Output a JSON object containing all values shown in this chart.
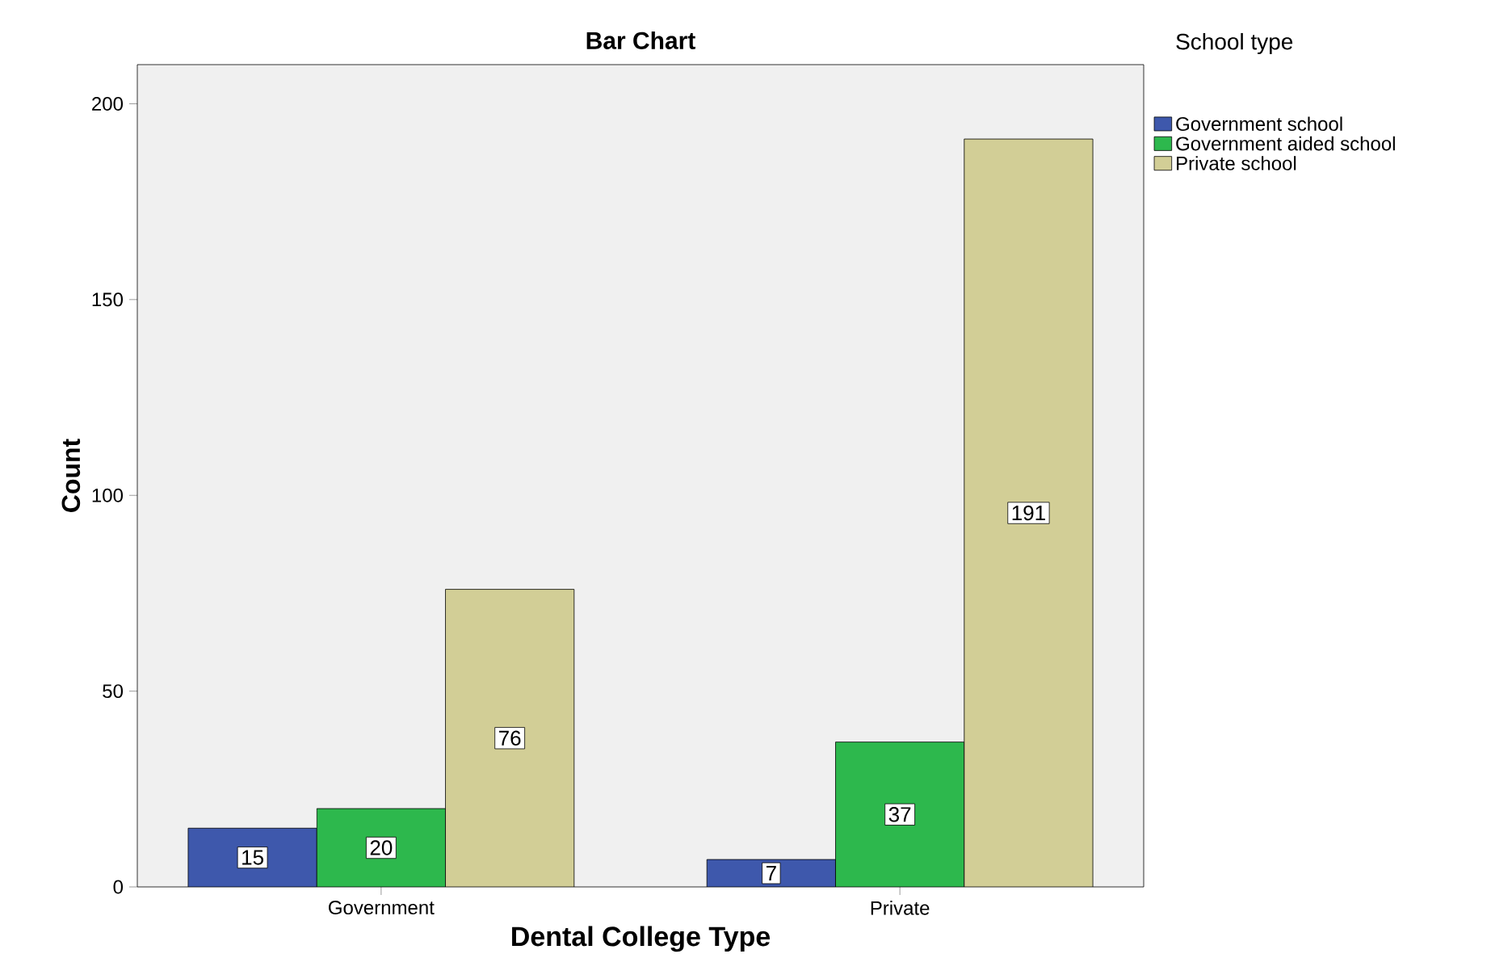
{
  "chart_data": {
    "type": "bar",
    "title": "Bar Chart",
    "xlabel": "Dental College Type",
    "ylabel": "Count",
    "legend_title": "School type",
    "categories": [
      "Government",
      "Private"
    ],
    "series": [
      {
        "name": "Government school",
        "color": "#3e58ac",
        "values": [
          15,
          7
        ]
      },
      {
        "name": "Government aided school",
        "color": "#2db84d",
        "values": [
          20,
          37
        ]
      },
      {
        "name": "Private school",
        "color": "#d2ce96",
        "values": [
          76,
          191
        ]
      }
    ],
    "ylim": [
      0,
      210
    ],
    "yticks": [
      0,
      50,
      100,
      150,
      200
    ],
    "grid": false,
    "legend": "top right",
    "data_labels": true
  }
}
